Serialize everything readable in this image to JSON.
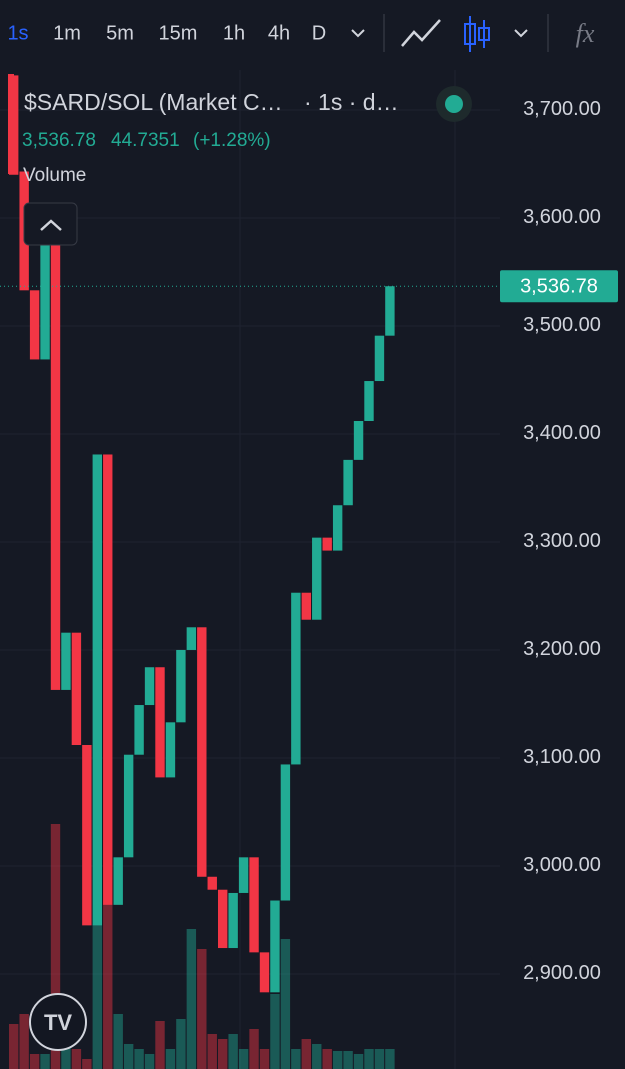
{
  "toolbar": {
    "intervals": [
      "1s",
      "1m",
      "5m",
      "15m",
      "1h",
      "4h",
      "D"
    ]
  },
  "header": {
    "symbol": "$SARD/SOL (Market C…",
    "meta": "· 1s · d…",
    "price": "3,536.78",
    "change": "44.7351",
    "change_pct": "(+1.28%)",
    "volume_label": "Volume"
  },
  "chart_data": {
    "type": "candlestick",
    "open": [
      3732,
      3643,
      3533,
      3469,
      3575,
      3163,
      3216,
      3112,
      2945,
      3381,
      2964,
      3008,
      3103,
      3149,
      3184,
      3082,
      3133,
      3200,
      3221,
      2990,
      2978,
      2924,
      2975,
      3008,
      2920,
      2883,
      2968,
      3094,
      3253,
      3228,
      3304,
      3292,
      3334,
      3376,
      3412,
      3449,
      3491
    ],
    "close": [
      3640,
      3533,
      3469,
      3575,
      3163,
      3216,
      3112,
      2945,
      3381,
      2964,
      3008,
      3103,
      3149,
      3184,
      3082,
      3133,
      3200,
      3221,
      2990,
      2978,
      2924,
      2975,
      3008,
      2920,
      2883,
      2968,
      3094,
      3253,
      3228,
      3304,
      3292,
      3334,
      3376,
      3412,
      3449,
      3491,
      3536.78
    ],
    "volume": [
      45,
      55,
      15,
      15,
      245,
      45,
      20,
      10,
      145,
      165,
      55,
      25,
      20,
      15,
      48,
      20,
      50,
      140,
      120,
      35,
      30,
      35,
      20,
      40,
      20,
      75,
      130,
      20,
      30,
      25,
      20,
      18,
      18,
      15,
      20,
      20,
      20
    ],
    "volume_lim": [
      0,
      270
    ],
    "up_color": "#22ab94",
    "down_color": "#f23645",
    "ylim": [
      2812,
      3737
    ],
    "yticks": [
      {
        "value": 2900,
        "label": "2,900.00"
      },
      {
        "value": 3000,
        "label": "3,000.00"
      },
      {
        "value": 3100,
        "label": "3,100.00"
      },
      {
        "value": 3200,
        "label": "3,200.00"
      },
      {
        "value": 3300,
        "label": "3,300.00"
      },
      {
        "value": 3400,
        "label": "3,400.00"
      },
      {
        "value": 3500,
        "label": "3,500.00"
      },
      {
        "value": 3600,
        "label": "3,600.00"
      },
      {
        "value": 3700,
        "label": "3,700.00"
      }
    ],
    "last_price": {
      "value": 3536.78,
      "label": "3,536.78"
    },
    "grid": true
  }
}
